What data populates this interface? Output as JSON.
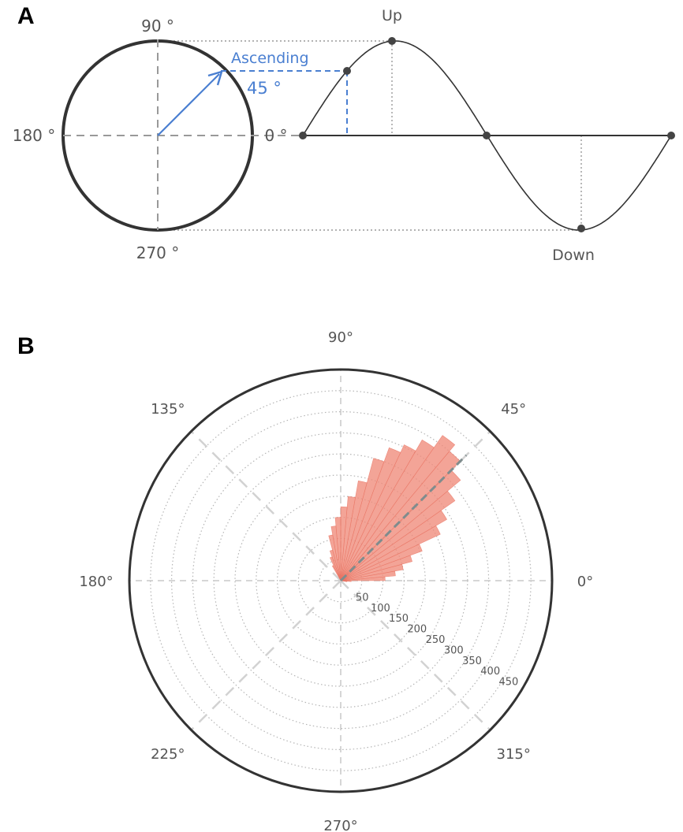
{
  "panels": {
    "a": {
      "letter": "A"
    },
    "b": {
      "letter": "B"
    }
  },
  "colors": {
    "phase_arrow": "#4a7fd1",
    "rose_fill": "#f08a7a",
    "axis_dark": "#333333",
    "guide_gray": "#999999"
  },
  "chart_data": [
    {
      "type": "diagram",
      "circle_labels": {
        "top": "90 °",
        "left": "180 °",
        "bottom": "270 °",
        "right": "0 °"
      },
      "arrow_label": "Ascending",
      "arrow_angle_label": "45 °",
      "arrow_angle_deg": 45,
      "wave_labels": {
        "peak": "Up",
        "trough": "Down"
      }
    },
    {
      "type": "polar_histogram",
      "angle_labels": [
        "0°",
        "45°",
        "90°",
        "135°",
        "180°",
        "225°",
        "270°",
        "315°"
      ],
      "radial_ticks": [
        50,
        100,
        150,
        200,
        250,
        300,
        350,
        400,
        450
      ],
      "rmax": 500,
      "bin_width_deg": 5,
      "mean_direction_deg": 45,
      "bins": [
        {
          "start": 0,
          "count": 105
        },
        {
          "start": 5,
          "count": 130
        },
        {
          "start": 10,
          "count": 150
        },
        {
          "start": 15,
          "count": 175
        },
        {
          "start": 20,
          "count": 205
        },
        {
          "start": 25,
          "count": 260
        },
        {
          "start": 30,
          "count": 290
        },
        {
          "start": 35,
          "count": 330
        },
        {
          "start": 40,
          "count": 370
        },
        {
          "start": 45,
          "count": 400
        },
        {
          "start": 50,
          "count": 420
        },
        {
          "start": 55,
          "count": 385
        },
        {
          "start": 60,
          "count": 355
        },
        {
          "start": 65,
          "count": 335
        },
        {
          "start": 70,
          "count": 300
        },
        {
          "start": 75,
          "count": 240
        },
        {
          "start": 80,
          "count": 200
        },
        {
          "start": 85,
          "count": 175
        },
        {
          "start": 90,
          "count": 150
        },
        {
          "start": 95,
          "count": 130
        },
        {
          "start": 100,
          "count": 110
        },
        {
          "start": 105,
          "count": 75
        },
        {
          "start": 110,
          "count": 60
        },
        {
          "start": 115,
          "count": 40
        },
        {
          "start": 355,
          "count": 25
        },
        {
          "start": 350,
          "count": 15
        }
      ]
    }
  ]
}
